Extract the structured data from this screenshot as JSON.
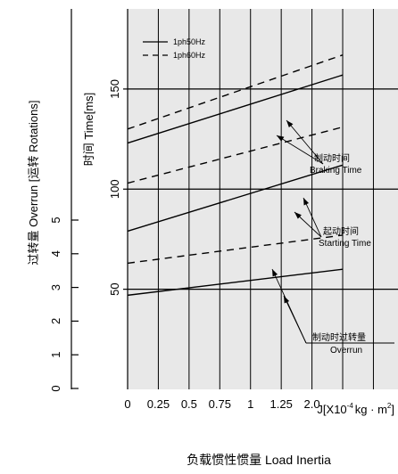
{
  "chart_data": {
    "type": "line",
    "x": [
      0,
      1.75
    ],
    "xlim": [
      0,
      2.2
    ],
    "xticks": [
      "0",
      "0.25",
      "0.5",
      "0.75",
      "1",
      "1.25",
      "2.0"
    ],
    "xlabel_prefix": "J[X10",
    "xlabel_exp1": "-4",
    "xlabel_mid": "kg · m",
    "xlabel_exp2": "2",
    "xlabel_suffix": "]",
    "caption": "负载惯性惯量 Load Inertia",
    "time_axis": {
      "label": "时间 Time[ms]",
      "ylim": [
        0,
        190
      ],
      "ticks": [
        "50",
        "100",
        "150"
      ],
      "tick_values": [
        50,
        100,
        150
      ]
    },
    "overrun_axis": {
      "label": "过转量 Overrun [运转 Rotations]",
      "ticks": [
        "0",
        "1",
        "2",
        "3",
        "4",
        "5"
      ]
    },
    "legend": [
      "1ph50Hz",
      "1ph60Hz"
    ],
    "series": [
      {
        "group": "braking",
        "name": "1ph50Hz",
        "style": "solid",
        "values": [
          123,
          157
        ]
      },
      {
        "group": "braking",
        "name": "1ph60Hz",
        "style": "dashed",
        "values": [
          130,
          167
        ]
      },
      {
        "group": "starting",
        "name": "1ph50Hz",
        "style": "solid",
        "values": [
          79,
          112
        ]
      },
      {
        "group": "starting",
        "name": "1ph60Hz",
        "style": "dashed",
        "values": [
          103,
          131
        ]
      },
      {
        "group": "overrun",
        "name": "1ph50Hz",
        "style": "solid",
        "values": [
          47,
          60
        ]
      },
      {
        "group": "overrun",
        "name": "1ph60Hz",
        "style": "dashed",
        "values": [
          63,
          77
        ]
      }
    ],
    "annotations": {
      "braking_cn": "制动时间",
      "braking_en": "Braking Time",
      "starting_cn": "起动时间",
      "starting_en": "Starting Time",
      "overrun_cn": "制动时过转量",
      "overrun_en": "Overrun"
    },
    "grid": true,
    "background": "#e8e8e8"
  }
}
